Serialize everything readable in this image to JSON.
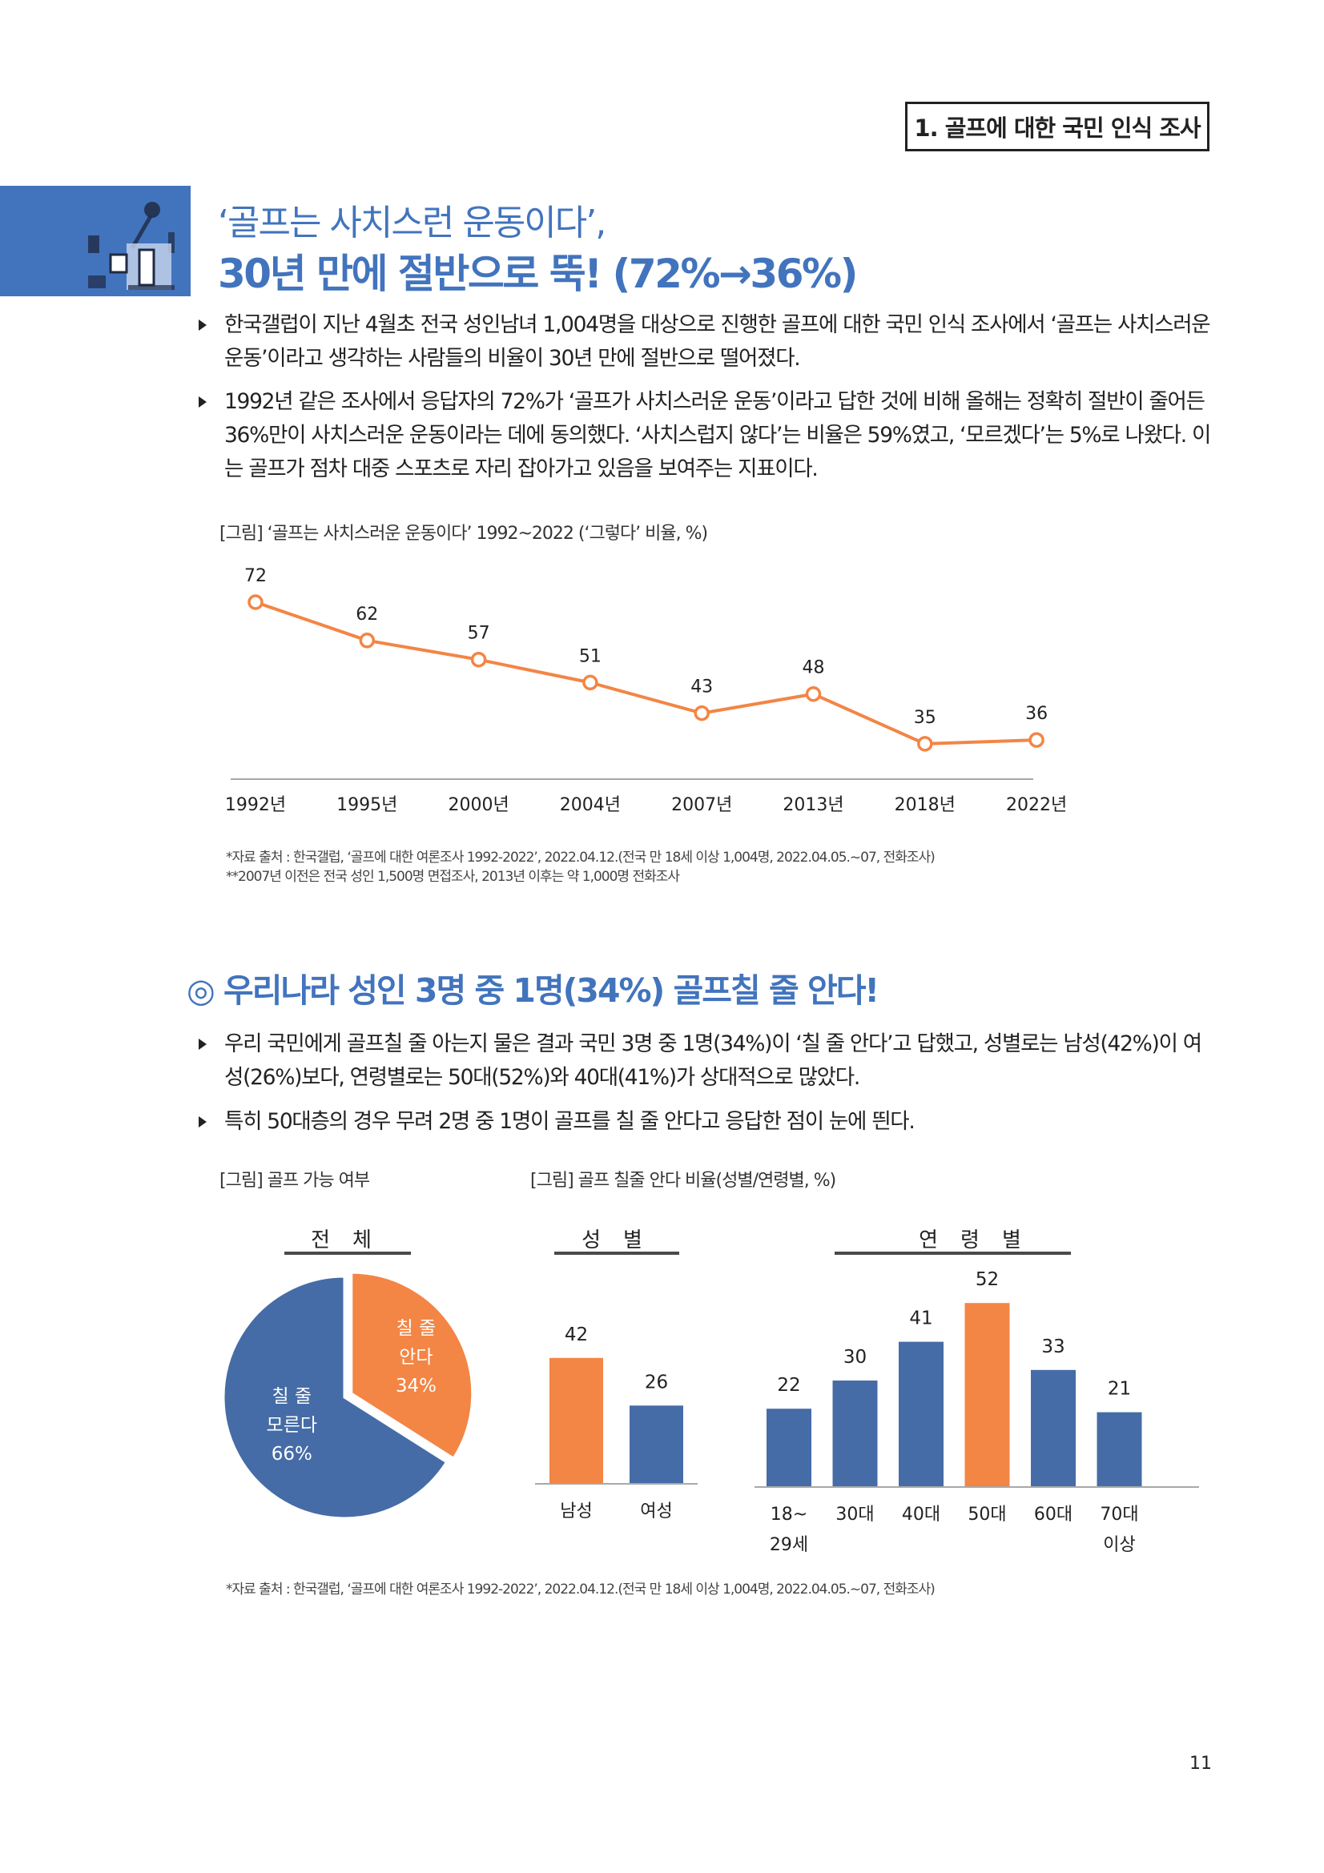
{
  "header": {
    "section_label": "1. 골프에 대한 국민 인식 조사",
    "title_line1": "‘골프는 사치스런 운동이다’,",
    "title_line2": "30년 만에 절반으로 뚝! (72%→36%)",
    "icon": "golf-cart-icon"
  },
  "section1": {
    "bullets": [
      "한국갤럽이 지난 4월초 전국 성인남녀 1,004명을 대상으로 진행한 골프에 대한 국민 인식 조사에서 ‘골프는 사치스러운 운동’이라고 생각하는 사람들의 비율이 30년 만에 절반으로 떨어졌다.",
      "1992년 같은 조사에서 응답자의 72%가 ‘골프가 사치스러운 운동’이라고 답한 것에 비해 올해는 정확히 절반이 줄어든 36%만이 사치스러운 운동이라는 데에 동의했다. ‘사치스럽지 않다’는 비율은 59%였고, ‘모르겠다’는 5%로 나왔다. 이는 골프가 점차 대중 스포츠로 자리 잡아가고 있음을 보여주는 지표이다."
    ],
    "figure_caption": "[그림] ‘골프는 사치스러운 운동이다’ 1992~2022 (‘그렇다’ 비율, %)",
    "notes": [
      "*자료 출처 : 한국갤럽, ‘골프에 대한 여론조사 1992-2022’, 2022.04.12.(전국 만 18세 이상 1,004명, 2022.04.05.~07, 전화조사)",
      "**2007년 이전은 전국 성인 1,500명 면접조사, 2013년 이후는 약 1,000명 전화조사"
    ]
  },
  "section2": {
    "heading": "◎ 우리나라 성인 3명 중 1명(34%) 골프칠 줄 안다!",
    "bullets": [
      "우리 국민에게 골프칠 줄 아는지 물은 결과 국민 3명 중 1명(34%)이 ‘칠 줄 안다’고 답했고, 성별로는 남성(42%)이 여성(26%)보다, 연령별로는 50대(52%)와 40대(41%)가 상대적으로 많았다.",
      "특히 50대층의 경우 무려 2명 중 1명이 골프를 칠 줄 안다고 응답한 점이 눈에 띈다."
    ],
    "caption_pie": "[그림] 골프 가능 여부",
    "caption_bars": "[그림] 골프 칠줄 안다 비율(성별/연령별, %)",
    "group_titles": {
      "total": "전체",
      "gender": "성별",
      "age": "연령별"
    },
    "note": "*자료 출처 : 한국갤럽, ‘골프에 대한 여론조사 1992-2022’, 2022.04.12.(전국 만 18세 이상 1,004명, 2022.04.05.~07, 전화조사)"
  },
  "colors": {
    "brand_blue": "#4274bd",
    "orange": "#f38545",
    "bar_blue": "#456ca6",
    "axis": "#a8a8a8"
  },
  "chart_data": [
    {
      "type": "line",
      "title": "‘골프는 사치스러운 운동이다’ 1992~2022 (‘그렇다’ 비율, %)",
      "categories": [
        "1992년",
        "1995년",
        "2000년",
        "2004년",
        "2007년",
        "2013년",
        "2018년",
        "2022년"
      ],
      "values": [
        72,
        62,
        57,
        51,
        43,
        48,
        35,
        36
      ],
      "xlabel": "",
      "ylabel": "",
      "ylim": [
        0,
        80
      ],
      "grid": false
    },
    {
      "type": "pie",
      "title": "골프 가능 여부 - 전체",
      "slices": [
        {
          "label_line1": "칠 줄",
          "label_line2": "안다",
          "value": 34,
          "value_label": "34%",
          "color": "#f38545"
        },
        {
          "label_line1": "칠 줄",
          "label_line2": "모른다",
          "value": 66,
          "value_label": "66%",
          "color": "#456ca6"
        }
      ]
    },
    {
      "type": "bar",
      "title": "성별",
      "categories": [
        "남성",
        "여성"
      ],
      "values": [
        42,
        26
      ],
      "colors": [
        "#f38545",
        "#456ca6"
      ],
      "ylim": [
        0,
        60
      ]
    },
    {
      "type": "bar",
      "title": "연령별",
      "categories": [
        [
          "18~",
          "29세"
        ],
        [
          "30대"
        ],
        [
          "40대"
        ],
        [
          "50대"
        ],
        [
          "60대"
        ],
        [
          "70대",
          "이상"
        ]
      ],
      "values": [
        22,
        30,
        41,
        52,
        33,
        21
      ],
      "colors": [
        "#456ca6",
        "#456ca6",
        "#456ca6",
        "#f38545",
        "#456ca6",
        "#456ca6"
      ],
      "ylim": [
        0,
        60
      ]
    }
  ],
  "footer": {
    "page_number": "11"
  }
}
